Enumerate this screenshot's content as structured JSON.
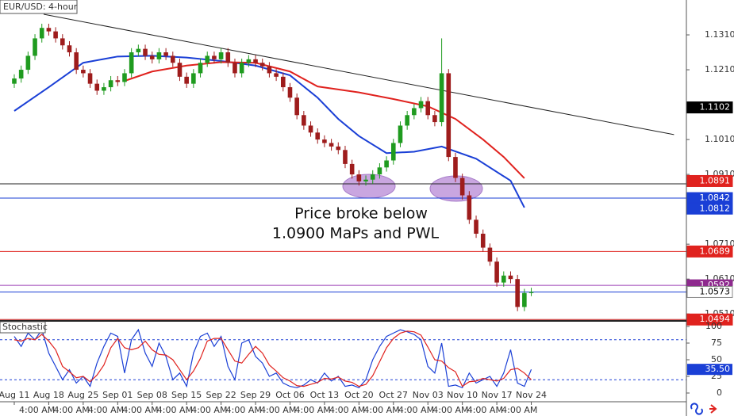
{
  "chart_data": [
    {
      "type": "candlestick",
      "title": "EUR/USD: 4-hour",
      "up_color": "#1f9b1f",
      "down_color": "#9e1c1c",
      "xlim": [
        -2.07,
        97.5
      ],
      "ylim": [
        1.049,
        1.141
      ],
      "yticks": [
        {
          "value": 1.131,
          "label": "1.1310"
        },
        {
          "value": 1.121,
          "label": "1.1210"
        },
        {
          "value": 1.101,
          "label": "1.1010"
        },
        {
          "value": 1.091,
          "label": "1.0910"
        },
        {
          "value": 1.071,
          "label": "1.0710"
        },
        {
          "value": 1.061,
          "label": "1.0610"
        },
        {
          "value": 1.051,
          "label": "1.0510"
        }
      ],
      "open": [
        1.117,
        1.1185,
        1.121,
        1.125,
        1.13,
        1.133,
        1.132,
        1.13,
        1.128,
        1.126,
        1.121,
        1.12,
        1.117,
        1.115,
        1.116,
        1.118,
        1.1175,
        1.12,
        1.126,
        1.127,
        1.125,
        1.124,
        1.126,
        1.125,
        1.123,
        1.119,
        1.117,
        1.12,
        1.123,
        1.125,
        1.124,
        1.126,
        1.123,
        1.12,
        1.123,
        1.124,
        1.123,
        1.122,
        1.12,
        1.119,
        1.116,
        1.113,
        1.108,
        1.105,
        1.103,
        1.101,
        1.1,
        1.099,
        1.098,
        1.094,
        1.091,
        1.089,
        1.0895,
        1.091,
        1.093,
        1.095,
        1.1,
        1.105,
        1.108,
        1.11,
        1.112,
        1.108,
        1.106,
        1.12,
        1.096,
        1.09,
        1.085,
        1.078,
        1.074,
        1.07,
        1.066,
        1.06,
        1.062,
        1.061,
        1.053,
        1.057
      ],
      "high": [
        1.1197,
        1.1222,
        1.1262,
        1.1312,
        1.1342,
        1.1342,
        1.1332,
        1.1312,
        1.1292,
        1.1272,
        1.1222,
        1.1212,
        1.1182,
        1.1172,
        1.1192,
        1.1192,
        1.1212,
        1.1272,
        1.1282,
        1.1282,
        1.1262,
        1.1272,
        1.1272,
        1.1262,
        1.1242,
        1.1202,
        1.1212,
        1.1242,
        1.1262,
        1.1262,
        1.1272,
        1.1272,
        1.1242,
        1.1242,
        1.1252,
        1.1252,
        1.1242,
        1.1232,
        1.1212,
        1.1202,
        1.1172,
        1.1142,
        1.1092,
        1.1062,
        1.1042,
        1.1022,
        1.1012,
        1.1002,
        1.0992,
        1.0952,
        1.0922,
        1.0907,
        1.0922,
        1.0942,
        1.0962,
        1.1012,
        1.1062,
        1.1092,
        1.1112,
        1.1132,
        1.1132,
        1.1092,
        1.13,
        1.1212,
        1.0972,
        1.0912,
        1.0862,
        1.0792,
        1.0752,
        1.0712,
        1.0672,
        1.0632,
        1.0632,
        1.0622,
        1.0582,
        1.0585
      ],
      "low": [
        1.1158,
        1.1173,
        1.1198,
        1.1238,
        1.1288,
        1.1308,
        1.1288,
        1.1268,
        1.1248,
        1.1198,
        1.1188,
        1.1158,
        1.1138,
        1.1138,
        1.1148,
        1.1163,
        1.1163,
        1.1188,
        1.1248,
        1.1238,
        1.1228,
        1.1228,
        1.1238,
        1.1218,
        1.1178,
        1.1158,
        1.1158,
        1.1188,
        1.1218,
        1.1228,
        1.1228,
        1.1218,
        1.1188,
        1.1188,
        1.1218,
        1.1218,
        1.1208,
        1.1188,
        1.1178,
        1.1148,
        1.1118,
        1.1068,
        1.1038,
        1.1018,
        1.0998,
        1.0988,
        1.0978,
        1.0968,
        1.0928,
        1.0898,
        1.0878,
        1.0878,
        1.0883,
        1.0898,
        1.0918,
        1.0938,
        1.0988,
        1.1038,
        1.1068,
        1.1088,
        1.1068,
        1.1048,
        1.1048,
        1.0948,
        1.0888,
        1.0838,
        1.0768,
        1.0728,
        1.0688,
        1.0648,
        1.0588,
        1.0588,
        1.0598,
        1.0518,
        1.0518,
        1.0561
      ],
      "close": [
        1.1185,
        1.121,
        1.125,
        1.13,
        1.133,
        1.132,
        1.13,
        1.128,
        1.126,
        1.121,
        1.12,
        1.117,
        1.115,
        1.116,
        1.118,
        1.1175,
        1.12,
        1.126,
        1.127,
        1.125,
        1.124,
        1.126,
        1.125,
        1.123,
        1.119,
        1.117,
        1.12,
        1.123,
        1.125,
        1.124,
        1.126,
        1.123,
        1.12,
        1.123,
        1.124,
        1.123,
        1.122,
        1.12,
        1.119,
        1.116,
        1.113,
        1.108,
        1.105,
        1.103,
        1.101,
        1.1,
        1.099,
        1.098,
        1.094,
        1.091,
        1.089,
        1.0895,
        1.091,
        1.093,
        1.095,
        1.1,
        1.105,
        1.108,
        1.11,
        1.112,
        1.108,
        1.106,
        1.12,
        1.096,
        1.09,
        1.085,
        1.078,
        1.074,
        1.07,
        1.066,
        1.06,
        1.062,
        1.061,
        1.053,
        1.057,
        1.0573
      ],
      "ma": [
        {
          "color": "#1a3fd6",
          "x": [
            0,
            5,
            10,
            15,
            20,
            25,
            30,
            35,
            40,
            44,
            47,
            50,
            54,
            58,
            62,
            67,
            72,
            74
          ],
          "values": [
            1.1092,
            1.116,
            1.123,
            1.1248,
            1.125,
            1.1245,
            1.1235,
            1.1222,
            1.1194,
            1.113,
            1.1069,
            1.102,
            1.0971,
            1.0975,
            1.099,
            1.0955,
            1.0892,
            1.0815
          ]
        },
        {
          "color": "#e0221e",
          "x": [
            16,
            20,
            25,
            30,
            35,
            40,
            44,
            50,
            55,
            60,
            64,
            68,
            71,
            74
          ],
          "values": [
            1.1178,
            1.1205,
            1.1222,
            1.1232,
            1.123,
            1.1205,
            1.1162,
            1.1145,
            1.1126,
            1.1105,
            1.1069,
            1.101,
            1.096,
            1.0899
          ]
        }
      ],
      "trendline": {
        "color": "#222",
        "x": [
          4.26,
          95.7
        ],
        "values": [
          1.1369,
          1.1024
        ]
      },
      "hlines": [
        {
          "value": 1.0883,
          "color": "#222"
        },
        {
          "value": 1.0842,
          "color": "#1a3fd6"
        },
        {
          "value": 1.0689,
          "color": "#e0221e"
        },
        {
          "value": 1.0592,
          "color": "#9b3fb5"
        },
        {
          "value": 1.0573,
          "color": "#1a3fd6"
        },
        {
          "value": 1.0494,
          "color": "#c01010"
        }
      ],
      "price_labels": [
        {
          "value": 1.1102,
          "bg": "#000000",
          "fg": "#ffffff"
        },
        {
          "value": 1.0891,
          "bg": "#e0221e",
          "fg": "#ffffff"
        },
        {
          "value": 1.0842,
          "bg": "#1a3fd6",
          "fg": "#ffffff"
        },
        {
          "value": 1.0812,
          "bg": "#1a3fd6",
          "fg": "#ffffff"
        },
        {
          "value": 1.0689,
          "bg": "#e0221e",
          "fg": "#ffffff"
        },
        {
          "value": 1.0592,
          "bg": "#8e2a8e",
          "fg": "#ffffff"
        },
        {
          "value": 1.0573,
          "bg": "#ffffff",
          "fg": "#000000"
        },
        {
          "value": 1.0494,
          "bg": "#e0221e",
          "fg": "#ffffff"
        }
      ],
      "annotation": [
        "Price broke below",
        "1.0900 MaPs and PWL"
      ],
      "xticks": [
        {
          "value": 0,
          "label": "Aug 11"
        },
        {
          "value": 5,
          "label": "Aug 18"
        },
        {
          "value": 10,
          "label": "Aug 25"
        },
        {
          "value": 15,
          "label": "Sep 01"
        },
        {
          "value": 20,
          "label": "Sep 08"
        },
        {
          "value": 25,
          "label": "Sep 15"
        },
        {
          "value": 30,
          "label": "Sep 22"
        },
        {
          "value": 35,
          "label": "Sep 29"
        },
        {
          "value": 40,
          "label": "Oct 06"
        },
        {
          "value": 45,
          "label": "Oct 13"
        },
        {
          "value": 50,
          "label": "Oct 20"
        },
        {
          "value": 55,
          "label": "Oct 27"
        },
        {
          "value": 60,
          "label": "Nov 03"
        },
        {
          "value": 65,
          "label": "Nov 10"
        },
        {
          "value": 70,
          "label": "Nov 17"
        },
        {
          "value": 75,
          "label": "Nov 24"
        }
      ],
      "time_ticks": [
        {
          "value": 3.3,
          "label": "4:00 AM"
        },
        {
          "value": 8.3,
          "label": "4:00 AM"
        },
        {
          "value": 13.3,
          "label": "4:00 AM"
        },
        {
          "value": 18.3,
          "label": "4:00 AM"
        },
        {
          "value": 23.3,
          "label": "4:00 AM"
        },
        {
          "value": 28.3,
          "label": "4:00 AM"
        },
        {
          "value": 33.3,
          "label": "4:00 AM"
        },
        {
          "value": 38.3,
          "label": "4:00 AM"
        },
        {
          "value": 43.3,
          "label": "4:00 AM"
        },
        {
          "value": 48.3,
          "label": "4:00 AM"
        },
        {
          "value": 53.3,
          "label": "4:00 AM"
        },
        {
          "value": 58.3,
          "label": "4:00 AM"
        },
        {
          "value": 63.3,
          "label": "4:00 AM"
        },
        {
          "value": 68.3,
          "label": "4:00 AM"
        },
        {
          "value": 73.3,
          "label": "4:00 AM"
        }
      ]
    },
    {
      "type": "line",
      "title": "Stochastic",
      "ylim": [
        -10.7,
        108.3
      ],
      "yticks": [
        100,
        75,
        50,
        25,
        0
      ],
      "levels": [
        80,
        20
      ],
      "series": [
        {
          "color": "#1a3fd6",
          "values": [
            85,
            70,
            90,
            80,
            95,
            60,
            40,
            20,
            35,
            15,
            25,
            10,
            45,
            70,
            90,
            85,
            30,
            80,
            95,
            60,
            40,
            75,
            55,
            20,
            30,
            10,
            60,
            85,
            90,
            70,
            85,
            40,
            20,
            75,
            80,
            55,
            45,
            25,
            30,
            15,
            10,
            8,
            12,
            20,
            15,
            30,
            18,
            25,
            10,
            12,
            8,
            20,
            50,
            70,
            85,
            90,
            95,
            92,
            88,
            80,
            40,
            30,
            75,
            10,
            12,
            8,
            30,
            15,
            20,
            25,
            10,
            30,
            65,
            15,
            10,
            35.5
          ]
        },
        {
          "color": "#e0221e",
          "values": [
            80,
            78,
            82,
            80,
            88,
            78,
            65,
            40,
            32,
            23,
            25,
            17,
            27,
            42,
            68,
            82,
            68,
            65,
            68,
            78,
            65,
            58,
            57,
            50,
            35,
            20,
            33,
            52,
            78,
            82,
            82,
            65,
            48,
            45,
            58,
            70,
            60,
            42,
            33,
            23,
            18,
            11,
            10,
            13,
            16,
            22,
            21,
            24,
            18,
            16,
            10,
            13,
            26,
            47,
            68,
            82,
            90,
            93,
            92,
            87,
            69,
            50,
            48,
            38,
            32,
            10,
            17,
            18,
            22,
            20,
            18,
            22,
            35,
            37,
            30,
            20
          ]
        }
      ],
      "last_label": {
        "value": 35.5,
        "label": "35.50",
        "bg": "#1a3fd6",
        "fg": "#ffffff"
      }
    }
  ]
}
